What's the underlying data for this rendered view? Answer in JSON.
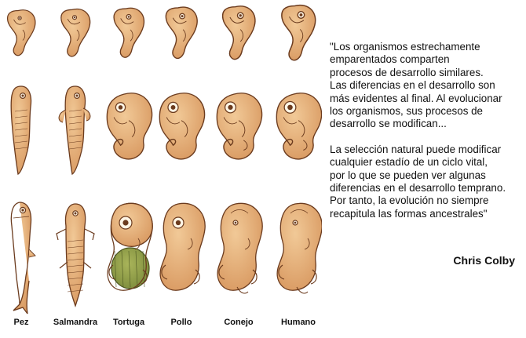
{
  "species": [
    {
      "id": "pez",
      "label": "Pez"
    },
    {
      "id": "salmandra",
      "label": "Salmandra"
    },
    {
      "id": "tortuga",
      "label": "Tortuga"
    },
    {
      "id": "pollo",
      "label": "Pollo"
    },
    {
      "id": "conejo",
      "label": "Conejo"
    },
    {
      "id": "humano",
      "label": "Humano"
    }
  ],
  "stages": [
    "early",
    "middle",
    "late"
  ],
  "colors": {
    "skin_light": "#f1c997",
    "skin_mid": "#d99a62",
    "outline": "#6b3b1e",
    "shell": "#7a8a3a"
  },
  "quote": {
    "paragraph1": "\"Los organismos estrechamente\nemparentados comparten\nprocesos de desarrollo similares.\nLas diferencias en el desarrollo son\nmás evidentes al final. Al evolucionar\nlos organismos, sus procesos de\ndesarrollo se modifican...",
    "paragraph2": "La selección natural puede modificar\ncualquier estadío de un ciclo vital,\npor lo que se pueden ver algunas\ndiferencias en el desarrollo temprano.\nPor tanto, la evolución no siempre\nrecapitula las formas ancestrales\""
  },
  "author": "Chris Colby"
}
